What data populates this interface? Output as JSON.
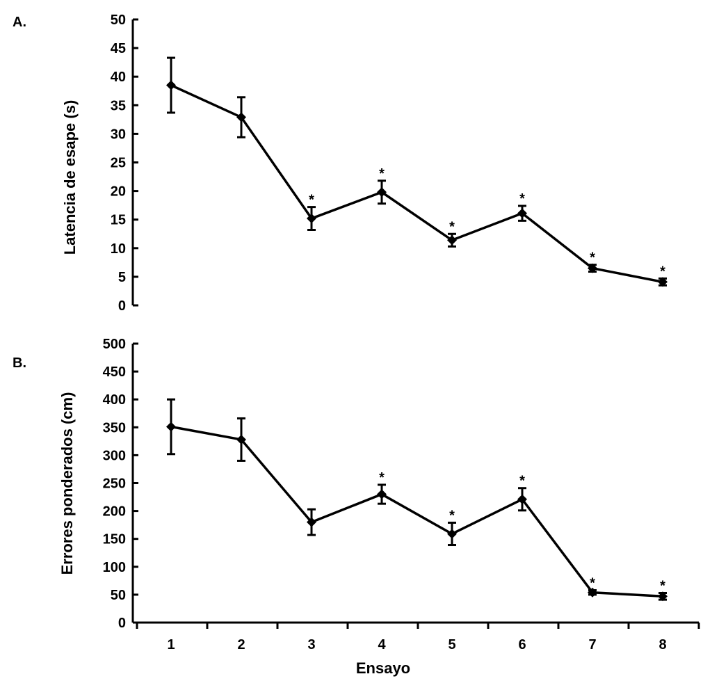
{
  "chart_data": [
    {
      "type": "line",
      "panel_label": "A.",
      "title": "",
      "xlabel": "",
      "ylabel": "Latencia de esape (s)",
      "ylim": [
        0,
        50
      ],
      "yticks": [
        "0",
        "5",
        "10",
        "15",
        "20",
        "25",
        "30",
        "35",
        "40",
        "45",
        "50"
      ],
      "x": [
        1,
        2,
        3,
        4,
        5,
        6,
        7,
        8
      ],
      "series": [
        {
          "name": "Latencia",
          "values": [
            38.5,
            32.9,
            15.2,
            19.8,
            11.4,
            16.1,
            6.5,
            4.1
          ],
          "error": [
            4.8,
            3.5,
            2.0,
            2.0,
            1.1,
            1.3,
            0.6,
            0.6
          ],
          "significant": [
            false,
            false,
            true,
            true,
            true,
            true,
            true,
            true
          ]
        }
      ],
      "significance_marker": "*"
    },
    {
      "type": "line",
      "panel_label": "B.",
      "title": "",
      "xlabel": "Ensayo",
      "ylabel": "Errores ponderados (cm)",
      "ylim": [
        0,
        500
      ],
      "yticks": [
        "0",
        "50",
        "100",
        "150",
        "200",
        "250",
        "300",
        "350",
        "400",
        "450",
        "500"
      ],
      "x": [
        1,
        2,
        3,
        4,
        5,
        6,
        7,
        8
      ],
      "xticks": [
        "1",
        "2",
        "3",
        "4",
        "5",
        "6",
        "7",
        "8"
      ],
      "series": [
        {
          "name": "Errores",
          "values": [
            351,
            328,
            180,
            230,
            159,
            221,
            54,
            47
          ],
          "error": [
            49,
            38,
            23,
            17,
            20,
            20,
            4,
            6
          ],
          "significant": [
            false,
            false,
            false,
            true,
            true,
            true,
            true,
            true
          ]
        }
      ],
      "significance_marker": "*"
    }
  ]
}
